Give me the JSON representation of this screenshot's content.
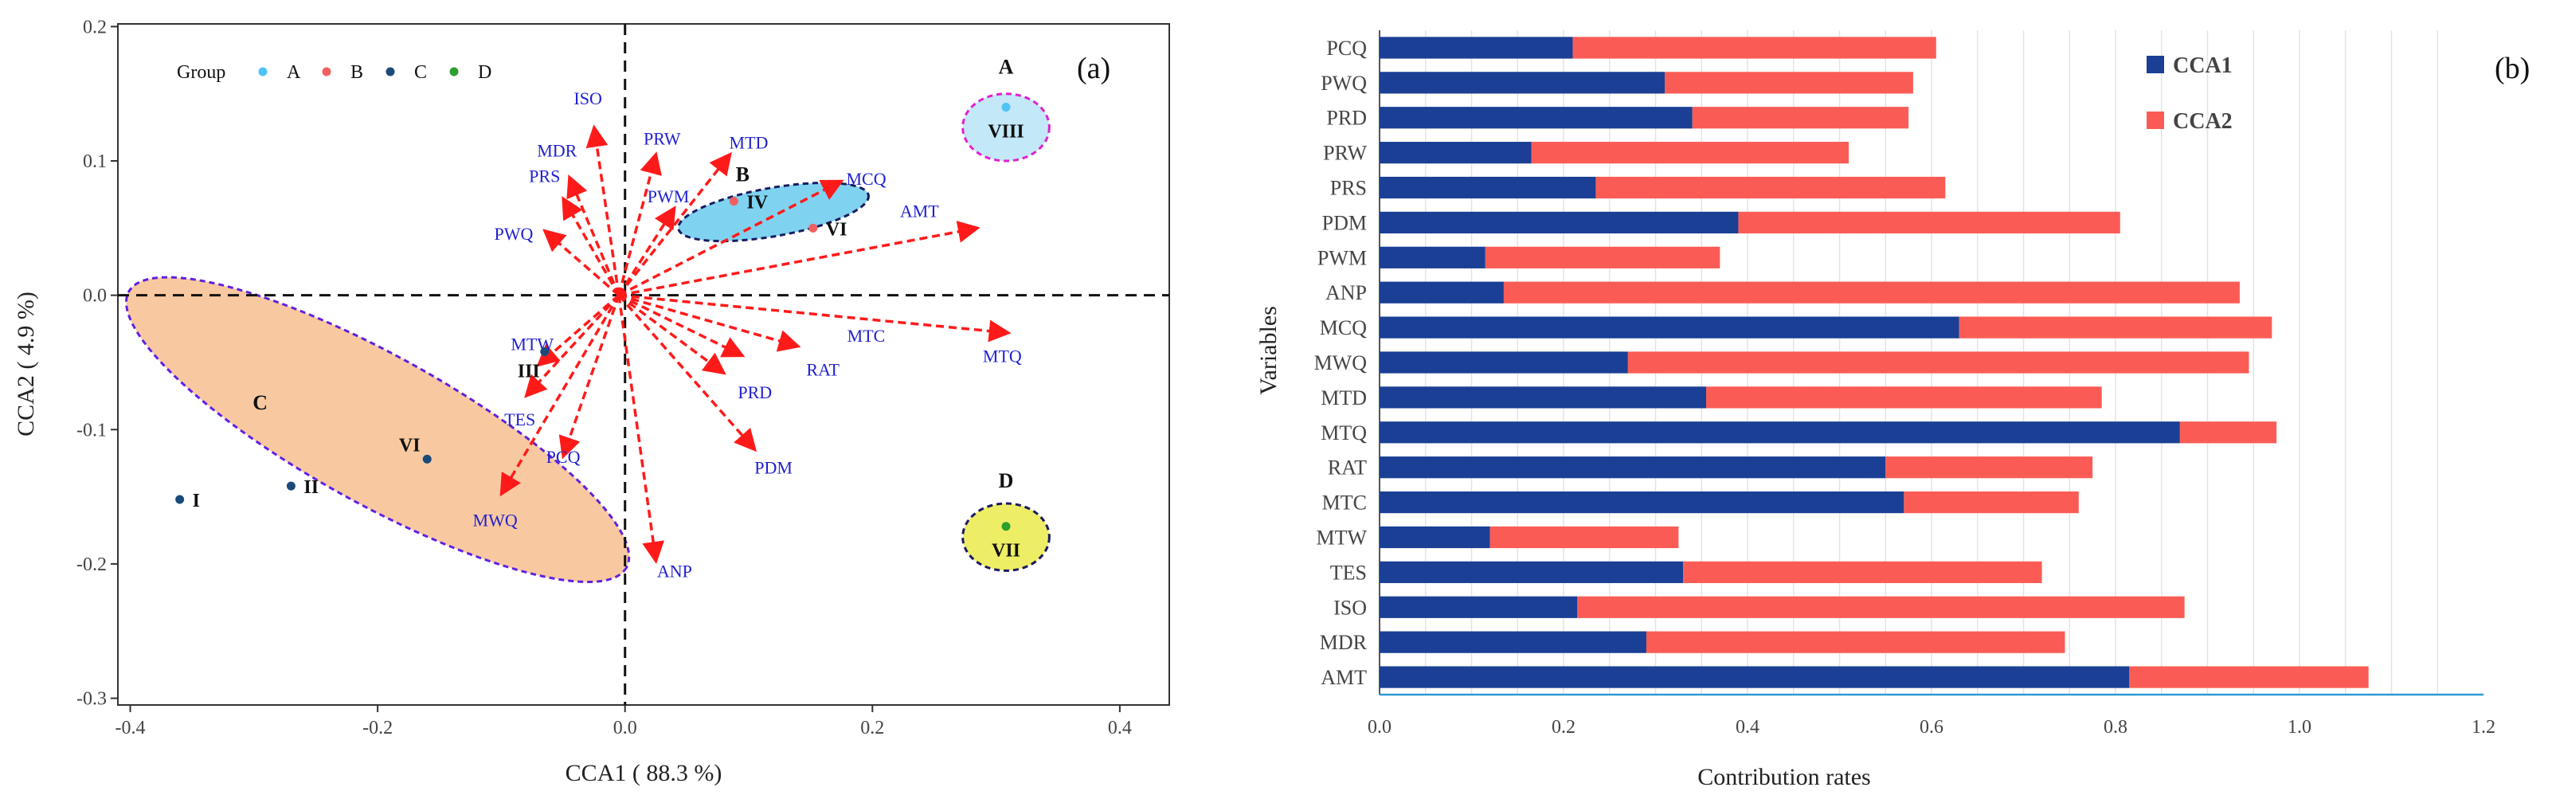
{
  "chart_data": [
    {
      "type": "scatter",
      "panel": "(a)",
      "xlabel": "CCA1 ( 88.3 %)",
      "ylabel": "CCA2 ( 4.9 %)",
      "xlim": [
        -0.41,
        0.44
      ],
      "ylim": [
        -0.305,
        0.202
      ],
      "xticks": [
        -0.4,
        -0.2,
        0.0,
        0.2,
        0.4
      ],
      "xtick_labels": [
        "-0.4",
        "-0.2",
        "0.0",
        "0.2",
        "0.4"
      ],
      "yticks": [
        -0.3,
        -0.2,
        -0.1,
        0.0,
        0.1,
        0.2
      ],
      "ytick_labels": [
        "-0.3",
        "-0.2",
        "-0.1",
        "0.0",
        "0.1",
        "0.2"
      ],
      "legend": {
        "title": "Group",
        "entries": [
          {
            "label": "A",
            "color": "#4fc3f7"
          },
          {
            "label": "B",
            "color": "#f06060"
          },
          {
            "label": "C",
            "color": "#1a4a7a"
          },
          {
            "label": "D",
            "color": "#2ca02c"
          }
        ]
      },
      "origin": [
        -0.005,
        0.0
      ],
      "vectors": [
        {
          "name": "ISO",
          "x": -0.025,
          "y": 0.125,
          "lx": -0.03,
          "ly": 0.147
        },
        {
          "name": "MDR",
          "x": -0.045,
          "y": 0.088,
          "lx": -0.055,
          "ly": 0.108
        },
        {
          "name": "PRS",
          "x": -0.05,
          "y": 0.072,
          "lx": -0.065,
          "ly": 0.089
        },
        {
          "name": "PWQ",
          "x": -0.065,
          "y": 0.048,
          "lx": -0.09,
          "ly": 0.046
        },
        {
          "name": "PRW",
          "x": 0.025,
          "y": 0.105,
          "lx": 0.03,
          "ly": 0.117
        },
        {
          "name": "MTD",
          "x": 0.085,
          "y": 0.105,
          "lx": 0.1,
          "ly": 0.114
        },
        {
          "name": "PWM",
          "x": 0.04,
          "y": 0.065,
          "lx": 0.035,
          "ly": 0.074
        },
        {
          "name": "MCQ",
          "x": 0.175,
          "y": 0.085,
          "lx": 0.195,
          "ly": 0.087
        },
        {
          "name": "AMT",
          "x": 0.285,
          "y": 0.05,
          "lx": 0.238,
          "ly": 0.063
        },
        {
          "name": "MTC",
          "x": 0.14,
          "y": -0.038,
          "lx": 0.195,
          "ly": -0.03
        },
        {
          "name": "MTQ",
          "x": 0.31,
          "y": -0.028,
          "lx": 0.305,
          "ly": -0.045
        },
        {
          "name": "RAT",
          "x": 0.095,
          "y": -0.045,
          "lx": 0.16,
          "ly": -0.055
        },
        {
          "name": "PRD",
          "x": 0.08,
          "y": -0.058,
          "lx": 0.105,
          "ly": -0.072
        },
        {
          "name": "PDM",
          "x": 0.105,
          "y": -0.115,
          "lx": 0.12,
          "ly": -0.128
        },
        {
          "name": "MTW",
          "x": -0.07,
          "y": -0.052,
          "lx": -0.075,
          "ly": -0.036
        },
        {
          "name": "TES",
          "x": -0.08,
          "y": -0.075,
          "lx": -0.085,
          "ly": -0.092
        },
        {
          "name": "PCQ",
          "x": -0.05,
          "y": -0.12,
          "lx": -0.05,
          "ly": -0.12
        },
        {
          "name": "MWQ",
          "x": -0.1,
          "y": -0.148,
          "lx": -0.105,
          "ly": -0.167
        },
        {
          "name": "ANP",
          "x": 0.025,
          "y": -0.198,
          "lx": 0.04,
          "ly": -0.205
        }
      ],
      "points": [
        {
          "label": "I",
          "group": "C",
          "x": -0.36,
          "y": -0.152
        },
        {
          "label": "II",
          "group": "C",
          "x": -0.27,
          "y": -0.142
        },
        {
          "label": "VI",
          "group": "C",
          "x": -0.16,
          "y": -0.122
        },
        {
          "label": "III",
          "group": "C",
          "x": -0.065,
          "y": -0.042
        },
        {
          "label": "IV",
          "group": "B",
          "x": 0.088,
          "y": 0.07
        },
        {
          "label": "VI",
          "group": "B",
          "x": 0.152,
          "y": 0.05
        },
        {
          "label": "VIII",
          "group": "A",
          "x": 0.308,
          "y": 0.14
        },
        {
          "label": "VII",
          "group": "D",
          "x": 0.308,
          "y": -0.172
        }
      ],
      "ellipses": [
        {
          "group": "A",
          "label": "A",
          "cx": 0.308,
          "cy": 0.125,
          "rx": 0.035,
          "ry": 0.025,
          "angle": 0,
          "fill": "#c3e8f8",
          "stroke": "#e020d0",
          "lx": 0.308,
          "ly": 0.165
        },
        {
          "group": "B",
          "label": "B",
          "cx": 0.12,
          "cy": 0.062,
          "rx": 0.078,
          "ry": 0.018,
          "angle": -10,
          "fill": "#7fd3f0",
          "stroke": "#1a1a60",
          "lx": 0.095,
          "ly": 0.085
        },
        {
          "group": "C",
          "label": "C",
          "cx": -0.2,
          "cy": -0.1,
          "rx": 0.23,
          "ry": 0.055,
          "angle": 29,
          "fill": "#f8c9a0",
          "stroke": "#6020e0",
          "lx": -0.295,
          "ly": -0.085
        },
        {
          "group": "D",
          "label": "D",
          "cx": 0.308,
          "cy": -0.18,
          "rx": 0.035,
          "ry": 0.025,
          "angle": 0,
          "fill": "#eeee66",
          "stroke": "#1a1a60",
          "lx": 0.308,
          "ly": -0.143
        }
      ]
    },
    {
      "type": "bar",
      "orientation": "horizontal",
      "stacked": true,
      "panel": "(b)",
      "xlabel": "Contribution rates",
      "ylabel": "Variables",
      "xlim": [
        0,
        1.2
      ],
      "xticks": [
        0.0,
        0.2,
        0.4,
        0.6,
        0.8,
        1.0,
        1.2
      ],
      "xtick_labels": [
        "0.0",
        "0.2",
        "0.4",
        "0.6",
        "0.8",
        "1.0",
        "1.2"
      ],
      "categories": [
        "PCQ",
        "PWQ",
        "PRD",
        "PRW",
        "PRS",
        "PDM",
        "PWM",
        "ANP",
        "MCQ",
        "MWQ",
        "MTD",
        "MTQ",
        "RAT",
        "MTC",
        "MTW",
        "TES",
        "ISO",
        "MDR",
        "AMT"
      ],
      "series": [
        {
          "name": "CCA1",
          "color": "#1a3f95",
          "values": [
            0.21,
            0.31,
            0.34,
            0.165,
            0.235,
            0.39,
            0.115,
            0.135,
            0.63,
            0.27,
            0.355,
            0.87,
            0.55,
            0.57,
            0.12,
            0.33,
            0.215,
            0.29,
            0.815
          ]
        },
        {
          "name": "CCA2",
          "color": "#fa5c55",
          "values": [
            0.395,
            0.27,
            0.235,
            0.345,
            0.38,
            0.415,
            0.255,
            0.8,
            0.34,
            0.675,
            0.43,
            0.105,
            0.225,
            0.19,
            0.205,
            0.39,
            0.66,
            0.455,
            0.26
          ]
        }
      ]
    }
  ]
}
